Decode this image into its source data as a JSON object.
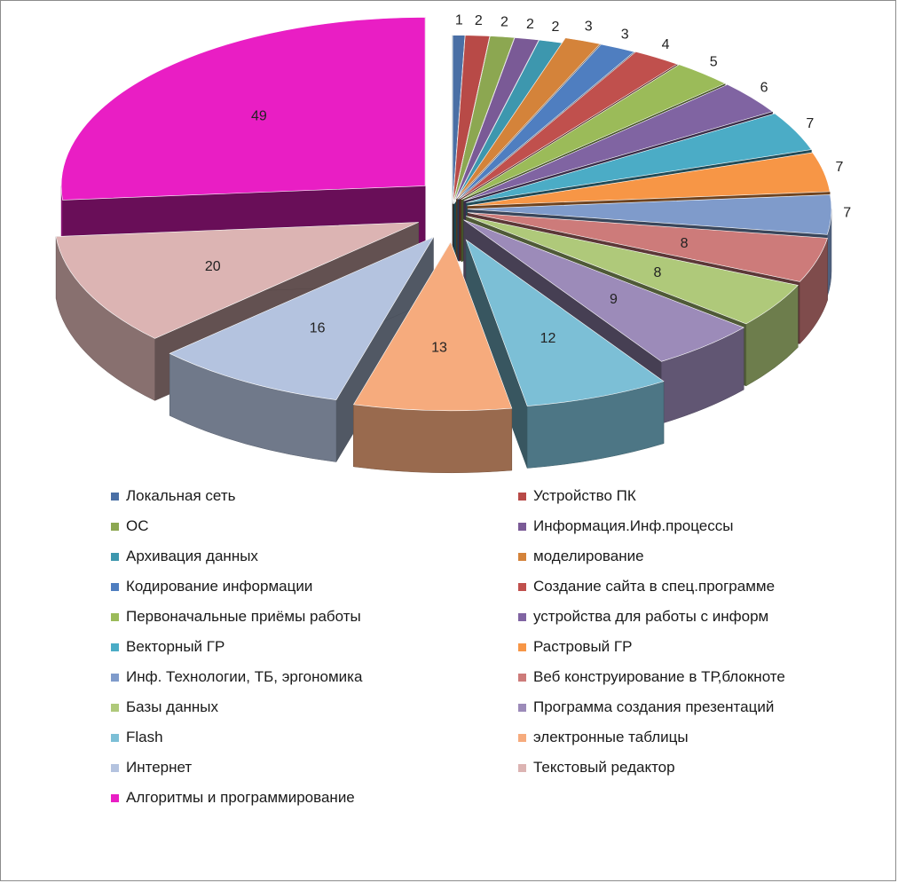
{
  "chart_data": {
    "type": "pie",
    "style": "3D exploded pie",
    "title": "",
    "legend_position": "bottom",
    "labels_shown": "values",
    "slices": [
      {
        "label": "Локальная сеть",
        "value": 1,
        "color": "#4A6FA5"
      },
      {
        "label": "Устройство ПК",
        "value": 2,
        "color": "#B84A47"
      },
      {
        "label": "ОС",
        "value": 2,
        "color": "#8CA751"
      },
      {
        "label": "Информация.Инф.процессы",
        "value": 2,
        "color": "#7A5A96"
      },
      {
        "label": "Архивация данных",
        "value": 2,
        "color": "#3D97AE"
      },
      {
        "label": "моделирование",
        "value": 3,
        "color": "#D4833A"
      },
      {
        "label": "Кодирование информации",
        "value": 3,
        "color": "#4F7EC0"
      },
      {
        "label": "Создание сайта в спец.программе",
        "value": 4,
        "color": "#C0504D"
      },
      {
        "label": "Первоначальные приёмы работы",
        "value": 5,
        "color": "#9BBB59"
      },
      {
        "label": "устройства для работы с информ",
        "value": 6,
        "color": "#8064A2"
      },
      {
        "label": "Векторный ГР",
        "value": 7,
        "color": "#4BACC6"
      },
      {
        "label": "Растровый ГР",
        "value": 7,
        "color": "#F79646"
      },
      {
        "label": "Инф. Технологии, ТБ, эргономика",
        "value": 7,
        "color": "#7F9BCB"
      },
      {
        "label": "Веб конструирование  в ТР,блокноте",
        "value": 8,
        "color": "#CD7B7A"
      },
      {
        "label": "Базы данных",
        "value": 8,
        "color": "#AFC97A"
      },
      {
        "label": "Программа создания презентаций",
        "value": 9,
        "color": "#9C8BB9"
      },
      {
        "label": "Flash",
        "value": 12,
        "color": "#7CBFD6"
      },
      {
        "label": "электронные таблицы",
        "value": 13,
        "color": "#F6AB7D"
      },
      {
        "label": "Интернет",
        "value": 16,
        "color": "#B4C3DF"
      },
      {
        "label": "Текстовый редактор",
        "value": 20,
        "color": "#DCB4B3"
      },
      {
        "label": "Алгоритмы и программирование",
        "value": 49,
        "color": "#E91EC4"
      }
    ]
  }
}
